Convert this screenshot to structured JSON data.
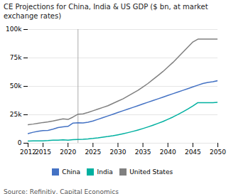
{
  "chart_data": {
    "type": "line",
    "title": "CE Projections for China, India & US GDP ($ bn, at market\nexchange rates)",
    "caption": "Source: Refinitiv, Capital Economics",
    "x": [
      2012,
      2013,
      2014,
      2015,
      2016,
      2017,
      2018,
      2019,
      2020,
      2021,
      2022,
      2023,
      2024,
      2025,
      2026,
      2027,
      2028,
      2029,
      2030,
      2031,
      2032,
      2033,
      2034,
      2035,
      2036,
      2037,
      2038,
      2039,
      2040,
      2041,
      2042,
      2043,
      2044,
      2045,
      2046,
      2047,
      2048,
      2049,
      2050
    ],
    "series": [
      {
        "name": "China",
        "color": "#4472c4",
        "values": [
          8500,
          9600,
          10500,
          11100,
          11200,
          12300,
          13700,
          14400,
          14800,
          17700,
          18000,
          17800,
          18500,
          19500,
          21000,
          22500,
          24000,
          25500,
          27000,
          28500,
          30000,
          31500,
          33000,
          34500,
          36000,
          37500,
          39000,
          40500,
          42000,
          43500,
          45000,
          46500,
          48000,
          49500,
          51000,
          52500,
          53500,
          54000,
          55000
        ]
      },
      {
        "name": "India",
        "color": "#00b0a0",
        "values": [
          1900,
          2000,
          2100,
          2100,
          2300,
          2600,
          2700,
          2900,
          2700,
          3100,
          3300,
          3500,
          3800,
          4200,
          4700,
          5300,
          5900,
          6600,
          7400,
          8300,
          9300,
          10400,
          11600,
          12900,
          14300,
          15800,
          17400,
          19100,
          21000,
          23000,
          25200,
          27600,
          30100,
          32800,
          35700,
          35700,
          35700,
          35700,
          36000
        ]
      },
      {
        "name": "United States",
        "color": "#808080",
        "values": [
          16200,
          16800,
          17500,
          18200,
          18700,
          19500,
          20500,
          21400,
          20900,
          23000,
          25500,
          25800,
          27000,
          28500,
          30000,
          31500,
          33000,
          35000,
          37000,
          39000,
          41500,
          44000,
          46500,
          49500,
          52500,
          56000,
          59500,
          63000,
          67000,
          71000,
          75500,
          80000,
          84500,
          89000,
          91500,
          91500,
          91500,
          91500,
          91500
        ]
      }
    ],
    "vline": 2022,
    "xlim": [
      2012,
      2050
    ],
    "ylim": [
      0,
      100000
    ],
    "xticks": [
      2012,
      2015,
      2020,
      2025,
      2030,
      2035,
      2040,
      2045,
      2050
    ],
    "yticks": [
      0,
      {
        "value": 25000,
        "label": "25k"
      },
      {
        "value": 50000,
        "label": "50k"
      },
      {
        "value": 75000,
        "label": "75k"
      },
      {
        "value": 100000,
        "label": "100k"
      }
    ],
    "grid": true,
    "legend": "bottom"
  }
}
